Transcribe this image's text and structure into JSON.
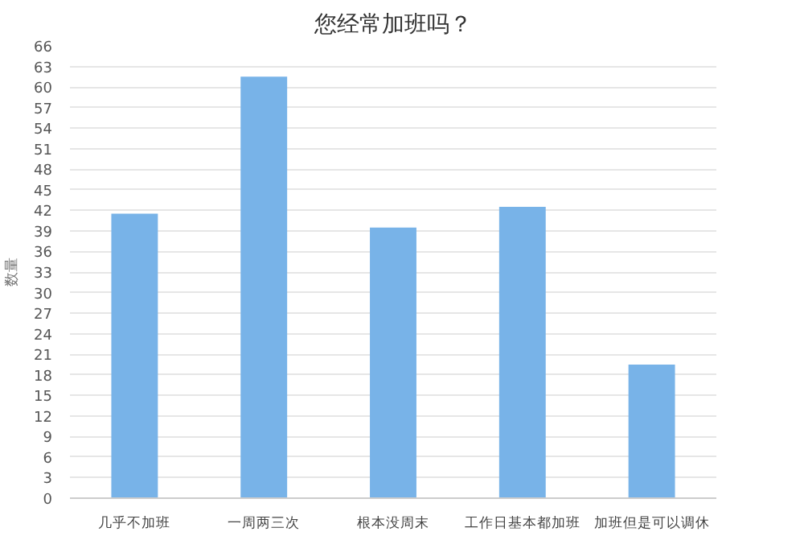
{
  "chart_data": {
    "type": "bar",
    "title": "您经常加班吗？",
    "ylabel": "数量",
    "categories": [
      "几乎不加班",
      "一周两三次",
      "根本没周末",
      "工作日基本都加班",
      "加班但是可以调休"
    ],
    "values": [
      41.5,
      61.5,
      39.5,
      42.5,
      19.5
    ],
    "color": "#78b3e8",
    "ylim": [
      0,
      66
    ],
    "yticks": [
      0,
      3,
      6,
      9,
      12,
      15,
      18,
      21,
      24,
      27,
      30,
      33,
      36,
      39,
      42,
      45,
      48,
      51,
      54,
      57,
      60,
      63,
      66
    ],
    "grid": "y"
  }
}
